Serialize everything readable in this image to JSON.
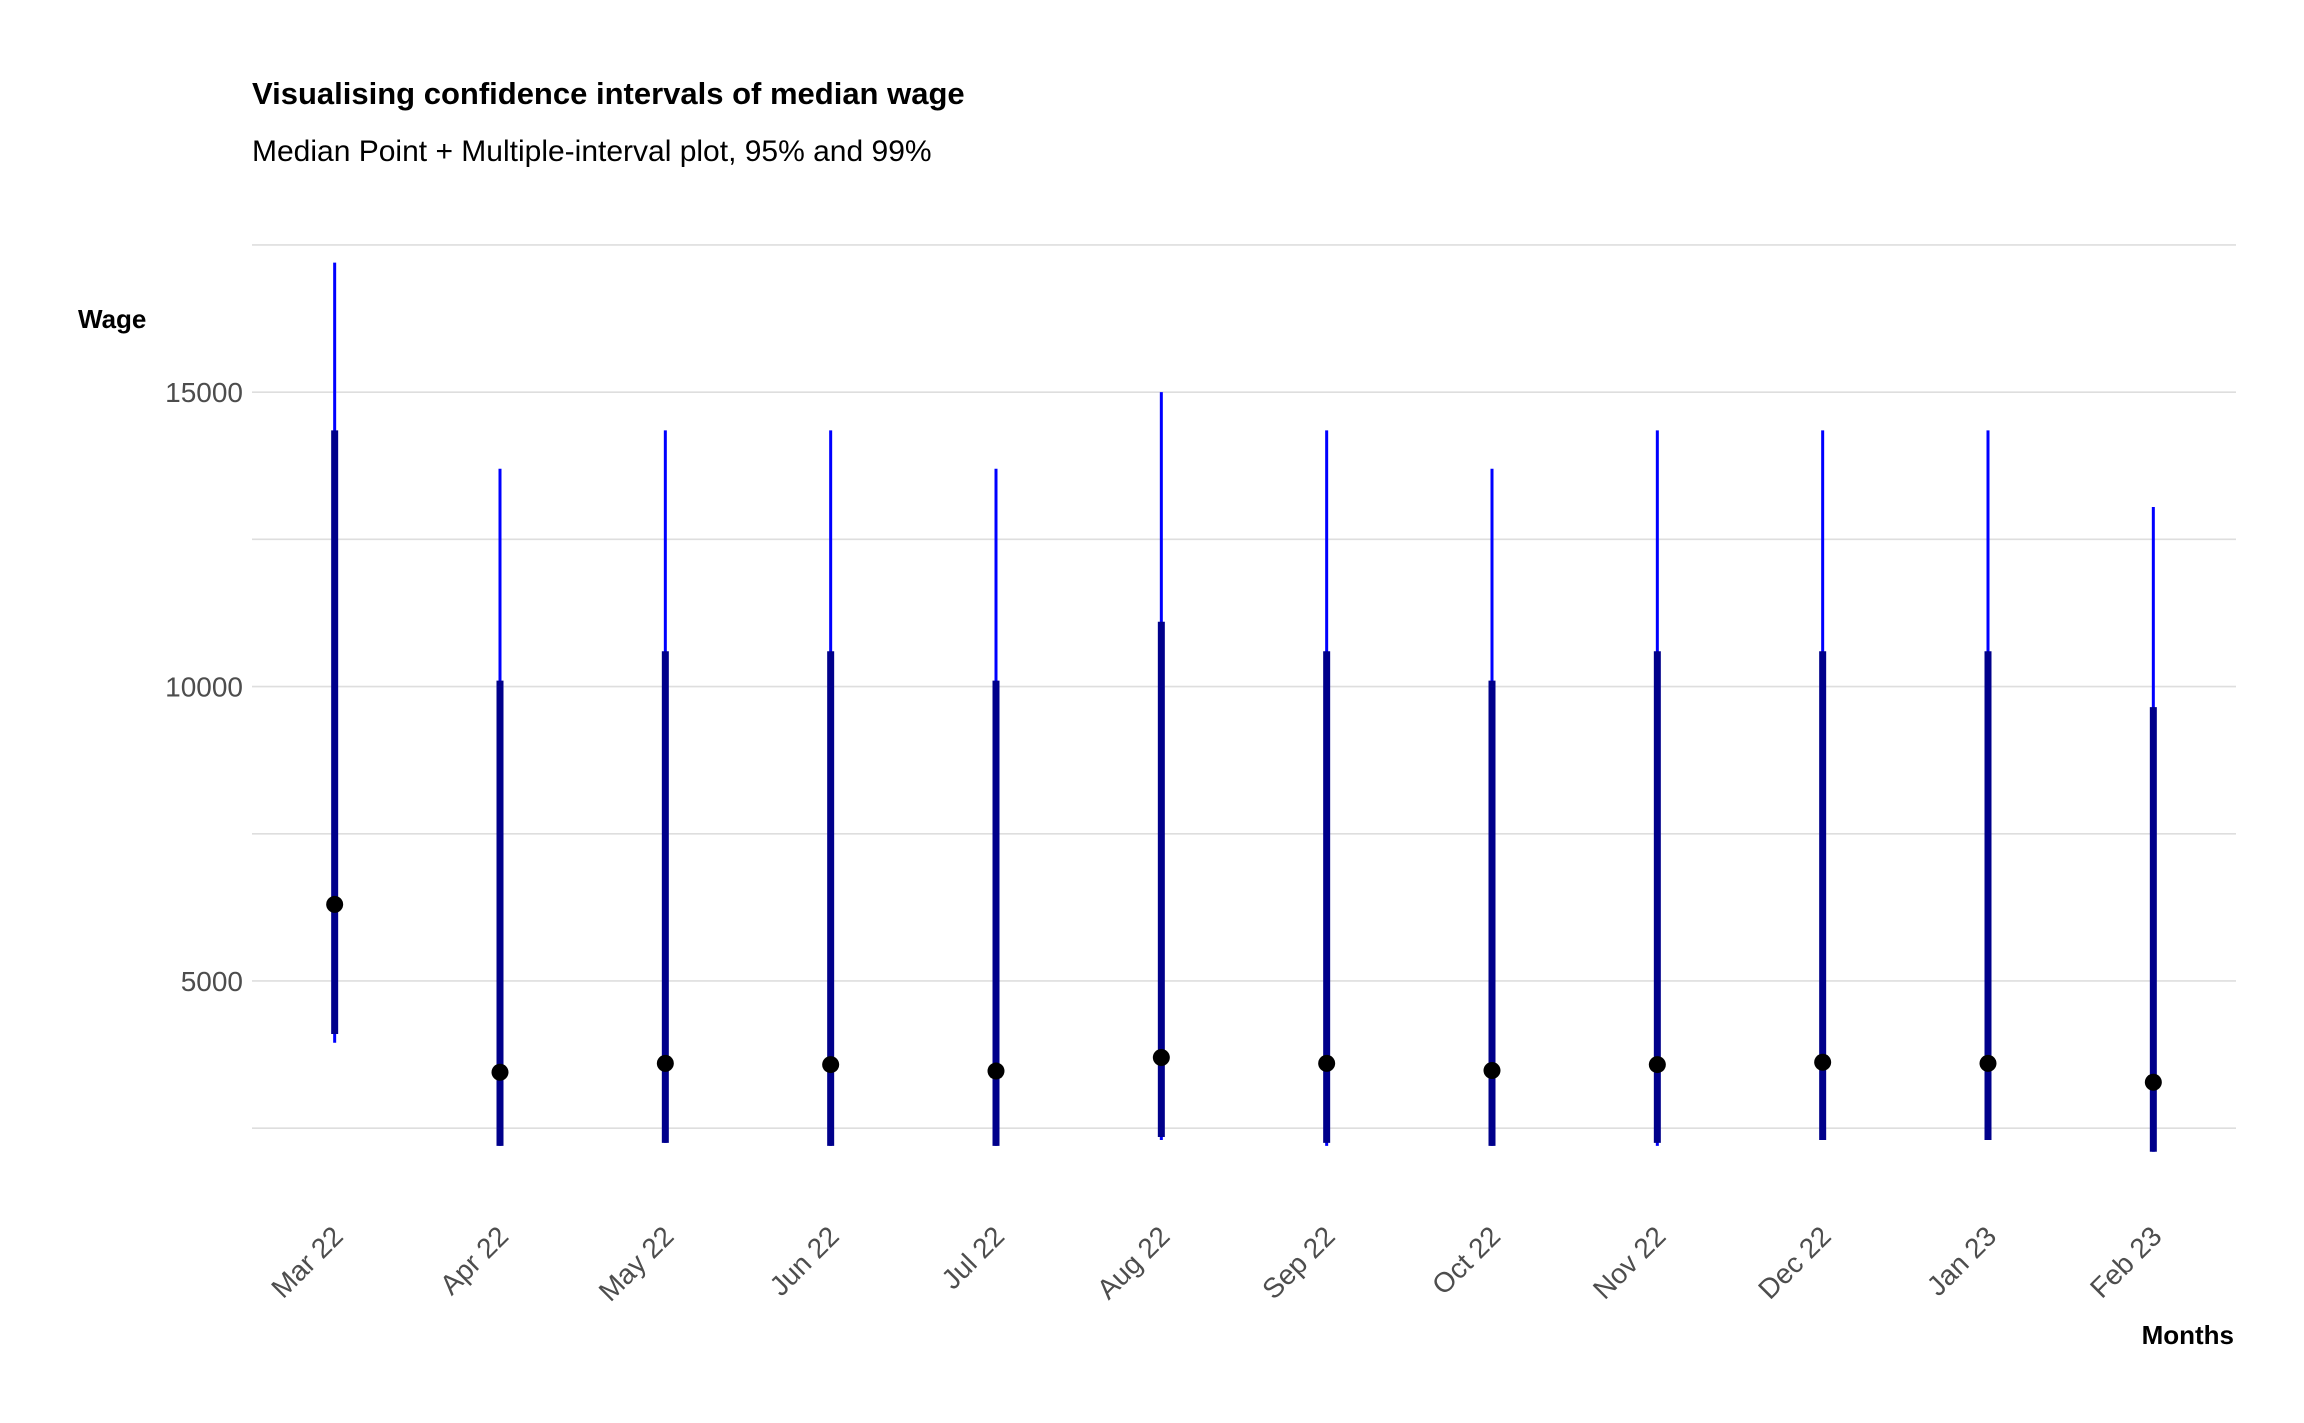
{
  "chart_data": {
    "type": "interval",
    "title": "Visualising confidence intervals of median wage",
    "subtitle": "Median Point + Multiple-interval plot, 95% and 99%",
    "xlabel": "Months",
    "ylabel": "Wage",
    "categories": [
      "Mar 22",
      "Apr 22",
      "May 22",
      "Jun 22",
      "Jul 22",
      "Aug 22",
      "Sep 22",
      "Oct 22",
      "Nov 22",
      "Dec 22",
      "Jan 23",
      "Feb 23"
    ],
    "yticks": [
      5000,
      10000,
      15000
    ],
    "ylim": [
      1450,
      17550
    ],
    "grid": true,
    "series": [
      {
        "name": "99%",
        "color": "#0000ff",
        "lower": [
          3950,
          2200,
          2250,
          2200,
          2200,
          2300,
          2200,
          2200,
          2200,
          2300,
          2300,
          2100
        ],
        "upper": [
          17200,
          13700,
          14350,
          14350,
          13700,
          15000,
          14350,
          13700,
          14350,
          14350,
          14350,
          13050
        ]
      },
      {
        "name": "95%",
        "color": "#00008b",
        "lower": [
          4100,
          2200,
          2250,
          2200,
          2200,
          2350,
          2250,
          2200,
          2250,
          2300,
          2300,
          2100
        ],
        "upper": [
          14350,
          10100,
          10600,
          10600,
          10100,
          11100,
          10600,
          10100,
          10600,
          10600,
          10600,
          9650
        ]
      },
      {
        "name": "Median",
        "color": "#000000",
        "values": [
          6300,
          3450,
          3600,
          3580,
          3470,
          3700,
          3600,
          3480,
          3580,
          3620,
          3600,
          3280
        ]
      }
    ]
  }
}
